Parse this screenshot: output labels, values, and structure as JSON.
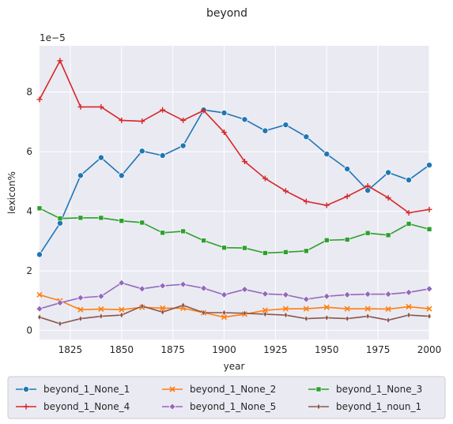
{
  "chart_data": {
    "type": "line",
    "title": "beyond",
    "xlabel": "year",
    "ylabel": "lexicon%",
    "offset_text": "1e−5",
    "xlim": [
      1810,
      2000
    ],
    "ylim": [
      -0.3,
      9.55
    ],
    "xticks": [
      1825,
      1850,
      1875,
      1900,
      1925,
      1950,
      1975,
      2000
    ],
    "yticks": [
      0,
      2,
      4,
      6,
      8
    ],
    "grid": true,
    "legend_position": "bottom",
    "legend_columns": 3,
    "x": [
      1810,
      1820,
      1830,
      1840,
      1850,
      1860,
      1870,
      1880,
      1890,
      1900,
      1910,
      1920,
      1930,
      1940,
      1950,
      1960,
      1970,
      1980,
      1990,
      2000
    ],
    "series": [
      {
        "name": "beyond_1_None_1",
        "color": "#1f77b4",
        "marker": "circle",
        "values": [
          2.55,
          3.6,
          5.2,
          5.8,
          5.2,
          6.02,
          5.87,
          6.2,
          7.4,
          7.3,
          7.08,
          6.7,
          6.9,
          6.5,
          5.92,
          5.42,
          4.7,
          5.3,
          5.05,
          5.55
        ]
      },
      {
        "name": "beyond_1_None_2",
        "color": "#ff7f0e",
        "marker": "x",
        "values": [
          1.2,
          1.0,
          0.7,
          0.72,
          0.7,
          0.78,
          0.75,
          0.75,
          0.6,
          0.45,
          0.55,
          0.68,
          0.73,
          0.73,
          0.78,
          0.73,
          0.73,
          0.72,
          0.8,
          0.73
        ]
      },
      {
        "name": "beyond_1_None_3",
        "color": "#2ca02c",
        "marker": "square",
        "values": [
          4.1,
          3.76,
          3.78,
          3.78,
          3.68,
          3.62,
          3.28,
          3.33,
          3.02,
          2.78,
          2.77,
          2.6,
          2.63,
          2.67,
          3.03,
          3.05,
          3.27,
          3.2,
          3.58,
          3.4
        ]
      },
      {
        "name": "beyond_1_None_4",
        "color": "#d62728",
        "marker": "plus",
        "values": [
          7.75,
          9.05,
          7.5,
          7.5,
          7.05,
          7.02,
          7.4,
          7.05,
          7.38,
          6.65,
          5.67,
          5.1,
          4.68,
          4.33,
          4.2,
          4.5,
          4.85,
          4.45,
          3.95,
          4.06
        ]
      },
      {
        "name": "beyond_1_None_5",
        "color": "#9467bd",
        "marker": "diamond",
        "values": [
          0.73,
          0.93,
          1.1,
          1.15,
          1.6,
          1.4,
          1.5,
          1.55,
          1.42,
          1.2,
          1.38,
          1.23,
          1.2,
          1.05,
          1.15,
          1.2,
          1.22,
          1.22,
          1.28,
          1.4
        ]
      },
      {
        "name": "beyond_1_noun_1",
        "color": "#8c564b",
        "marker": "thin-diamond",
        "values": [
          0.45,
          0.23,
          0.4,
          0.48,
          0.52,
          0.82,
          0.62,
          0.85,
          0.6,
          0.6,
          0.58,
          0.55,
          0.52,
          0.4,
          0.43,
          0.4,
          0.48,
          0.35,
          0.52,
          0.48
        ]
      }
    ]
  }
}
